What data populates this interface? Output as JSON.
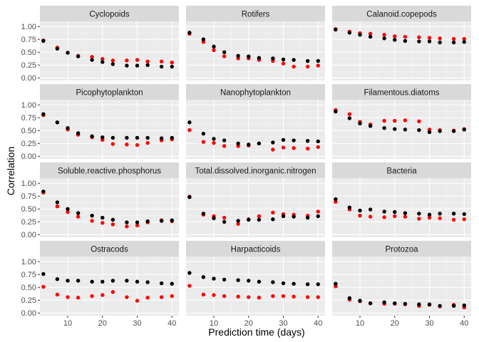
{
  "chart_data": {
    "type": "scatter",
    "xlabel": "Prediction time (days)",
    "ylabel": "Correlation",
    "xlim": [
      2,
      42
    ],
    "ylim": [
      -0.05,
      1.1
    ],
    "x_ticks": [
      10,
      20,
      30,
      40
    ],
    "y_ticks": [
      0.0,
      0.25,
      0.5,
      0.75,
      1.0
    ],
    "x_tick_labels": [
      "10",
      "20",
      "30",
      "40"
    ],
    "y_tick_labels": [
      "0.00",
      "0.25",
      "0.50",
      "0.75",
      "1.00"
    ],
    "grid": true,
    "facet_columns": 3,
    "series_colors": [
      "#000000",
      "#ff0000"
    ],
    "x": [
      3,
      7,
      10,
      13,
      17,
      20,
      23,
      27,
      30,
      33,
      37,
      40
    ],
    "panels": [
      {
        "title": "Cyclopoids",
        "black": [
          0.72,
          0.57,
          0.49,
          0.42,
          0.35,
          0.31,
          0.27,
          0.24,
          0.24,
          0.25,
          0.22,
          0.22
        ],
        "red": [
          0.73,
          0.59,
          0.49,
          0.43,
          0.41,
          0.37,
          0.34,
          0.34,
          0.35,
          0.32,
          0.32,
          0.3
        ]
      },
      {
        "title": "Rotifers",
        "black": [
          0.88,
          0.75,
          0.61,
          0.5,
          0.43,
          0.42,
          0.39,
          0.38,
          0.36,
          0.35,
          0.33,
          0.33
        ],
        "red": [
          0.86,
          0.7,
          0.54,
          0.42,
          0.38,
          0.38,
          0.35,
          0.33,
          0.28,
          0.22,
          0.22,
          0.24
        ]
      },
      {
        "title": "Calanoid.copepods",
        "black": [
          0.94,
          0.88,
          0.84,
          0.8,
          0.77,
          0.74,
          0.72,
          0.71,
          0.71,
          0.69,
          0.69,
          0.7
        ],
        "red": [
          0.95,
          0.9,
          0.87,
          0.86,
          0.84,
          0.81,
          0.8,
          0.79,
          0.78,
          0.77,
          0.76,
          0.76
        ]
      },
      {
        "title": "Picophytoplankton",
        "black": [
          0.82,
          0.66,
          0.55,
          0.45,
          0.39,
          0.37,
          0.36,
          0.36,
          0.36,
          0.36,
          0.35,
          0.36
        ],
        "red": [
          0.8,
          0.66,
          0.52,
          0.42,
          0.37,
          0.32,
          0.24,
          0.23,
          0.22,
          0.26,
          0.31,
          0.33
        ]
      },
      {
        "title": "Nanophytoplankton",
        "black": [
          0.66,
          0.44,
          0.34,
          0.31,
          0.25,
          0.23,
          0.25,
          0.27,
          0.32,
          0.31,
          0.3,
          0.29
        ],
        "red": [
          0.51,
          0.28,
          0.26,
          0.2,
          0.2,
          0.21,
          0.25,
          0.13,
          0.17,
          0.16,
          0.15,
          0.18
        ]
      },
      {
        "title": "Filamentous.diatoms",
        "black": [
          0.87,
          0.74,
          0.64,
          0.59,
          0.55,
          0.53,
          0.52,
          0.51,
          0.47,
          0.49,
          0.49,
          0.52
        ],
        "red": [
          0.9,
          0.82,
          0.67,
          0.62,
          0.69,
          0.69,
          0.7,
          0.68,
          0.52,
          0.51,
          0.5,
          0.53
        ]
      },
      {
        "title": "Soluble.reactive.phosphorus",
        "black": [
          0.84,
          0.63,
          0.5,
          0.42,
          0.37,
          0.33,
          0.29,
          0.24,
          0.24,
          0.26,
          0.27,
          0.28
        ],
        "red": [
          0.82,
          0.55,
          0.44,
          0.35,
          0.27,
          0.23,
          0.2,
          0.16,
          0.18,
          0.24,
          0.28,
          0.26
        ]
      },
      {
        "title": "Total.dissolved.inorganic.nitrogen",
        "black": [
          0.73,
          0.41,
          0.32,
          0.25,
          0.27,
          0.29,
          0.29,
          0.3,
          0.36,
          0.35,
          0.33,
          0.36
        ],
        "red": [
          0.74,
          0.39,
          0.36,
          0.33,
          0.21,
          0.3,
          0.36,
          0.43,
          0.4,
          0.39,
          0.37,
          0.45
        ]
      },
      {
        "title": "Bacteria",
        "black": [
          0.69,
          0.53,
          0.47,
          0.49,
          0.45,
          0.44,
          0.42,
          0.41,
          0.39,
          0.41,
          0.41,
          0.4
        ],
        "red": [
          0.64,
          0.49,
          0.37,
          0.35,
          0.34,
          0.36,
          0.35,
          0.31,
          0.33,
          0.32,
          0.29,
          0.3
        ]
      },
      {
        "title": "Ostracods",
        "black": [
          0.76,
          0.66,
          0.63,
          0.63,
          0.61,
          0.61,
          0.63,
          0.63,
          0.61,
          0.6,
          0.58,
          0.57
        ],
        "red": [
          0.51,
          0.36,
          0.31,
          0.3,
          0.33,
          0.35,
          0.41,
          0.31,
          0.24,
          0.3,
          0.31,
          0.33
        ]
      },
      {
        "title": "Harpacticoids",
        "black": [
          0.78,
          0.7,
          0.67,
          0.65,
          0.64,
          0.63,
          0.61,
          0.6,
          0.58,
          0.57,
          0.56,
          0.56
        ],
        "red": [
          0.53,
          0.36,
          0.35,
          0.33,
          0.32,
          0.31,
          0.3,
          0.33,
          0.33,
          0.32,
          0.31,
          0.31
        ]
      },
      {
        "title": "Protozoa",
        "black": [
          0.57,
          0.29,
          0.24,
          0.19,
          0.21,
          0.19,
          0.18,
          0.17,
          0.17,
          0.14,
          0.14,
          0.15
        ],
        "red": [
          0.52,
          0.26,
          0.23,
          0.19,
          0.18,
          0.18,
          0.17,
          0.14,
          0.16,
          0.13,
          0.16,
          0.11
        ]
      }
    ]
  }
}
